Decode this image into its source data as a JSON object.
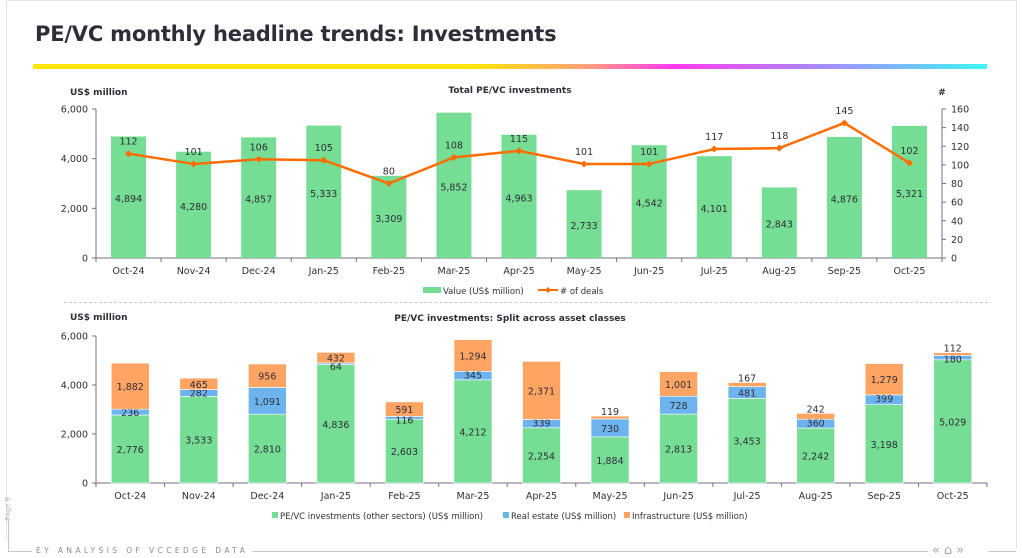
{
  "page": {
    "title": "PE/VC monthly headline trends: Investments",
    "page_label": "Page 9",
    "footer_text": "EY ANALYSIS OF VCCEDGE DATA",
    "nav": {
      "prev": "«",
      "home": "⌂",
      "next": "»"
    }
  },
  "colors": {
    "green": "#76dd94",
    "blue": "#6db4ee",
    "orange": "#ffa463",
    "line": "#ff6d00",
    "axis": "#70708a",
    "text": "#2e2e38"
  },
  "chart_data": [
    {
      "type": "bar",
      "title": "Total PE/VC investments",
      "ylabel": "US$ million",
      "y2label": "#",
      "ylim": [
        0,
        6000
      ],
      "y2lim": [
        0,
        160
      ],
      "yticks": [
        "0",
        "2,000",
        "4,000",
        "6,000"
      ],
      "y2ticks": [
        "0",
        "20",
        "40",
        "60",
        "80",
        "100",
        "120",
        "140",
        "160"
      ],
      "categories": [
        "Oct-24",
        "Nov-24",
        "Dec-24",
        "Jan-25",
        "Feb-25",
        "Mar-25",
        "Apr-25",
        "May-25",
        "Jun-25",
        "Jul-25",
        "Aug-25",
        "Sep-25",
        "Oct-25"
      ],
      "series": [
        {
          "name": "Value (US$ million)",
          "kind": "bar",
          "axis": "left",
          "values": [
            4894,
            4280,
            4857,
            5333,
            3309,
            5852,
            4963,
            2733,
            4542,
            4101,
            2843,
            4876,
            5321
          ],
          "labels": [
            "4,894",
            "4,280",
            "4,857",
            "5,333",
            "3,309",
            "5,852",
            "4,963",
            "2,733",
            "4,542",
            "4,101",
            "2,843",
            "4,876",
            "5,321"
          ]
        },
        {
          "name": "# of deals",
          "kind": "line",
          "axis": "right",
          "values": [
            112,
            101,
            106,
            105,
            80,
            108,
            115,
            101,
            101,
            117,
            118,
            145,
            102
          ],
          "labels": [
            "112",
            "101",
            "106",
            "105",
            "80",
            "108",
            "115",
            "101",
            "101",
            "117",
            "118",
            "145",
            "102"
          ]
        }
      ],
      "legend": "bottom-center"
    },
    {
      "type": "bar",
      "stacked": true,
      "title": "PE/VC investments: Split across asset classes",
      "ylabel": "US$ million",
      "ylim": [
        0,
        6000
      ],
      "yticks": [
        "0",
        "2,000",
        "4,000",
        "6,000"
      ],
      "categories": [
        "Oct-24",
        "Nov-24",
        "Dec-24",
        "Jan-25",
        "Feb-25",
        "Mar-25",
        "Apr-25",
        "May-25",
        "Jun-25",
        "Jul-25",
        "Aug-25",
        "Sep-25",
        "Oct-25"
      ],
      "series": [
        {
          "name": "PE/VC investments (other sectors) (US$ million)",
          "values": [
            2776,
            3533,
            2810,
            4836,
            2603,
            4212,
            2254,
            1884,
            2813,
            3453,
            2242,
            3198,
            5029
          ],
          "labels": [
            "2,776",
            "3,533",
            "2,810",
            "4,836",
            "2,603",
            "4,212",
            "2,254",
            "1,884",
            "2,813",
            "3,453",
            "2,242",
            "3,198",
            "5,029"
          ]
        },
        {
          "name": "Real estate (US$ million)",
          "values": [
            236,
            282,
            1091,
            64,
            116,
            345,
            339,
            730,
            728,
            481,
            360,
            399,
            180
          ],
          "labels": [
            "236",
            "282",
            "1,091",
            "64",
            "116",
            "345",
            "339",
            "730",
            "728",
            "481",
            "360",
            "399",
            "180"
          ]
        },
        {
          "name": "Infrastructure (US$ million)",
          "values": [
            1882,
            465,
            956,
            432,
            591,
            1294,
            2371,
            119,
            1001,
            167,
            242,
            1279,
            112
          ],
          "labels": [
            "1,882",
            "465",
            "956",
            "432",
            "591",
            "1,294",
            "2,371",
            "119",
            "1,001",
            "167",
            "242",
            "1,279",
            "112"
          ]
        }
      ],
      "legend": "bottom-center"
    }
  ]
}
